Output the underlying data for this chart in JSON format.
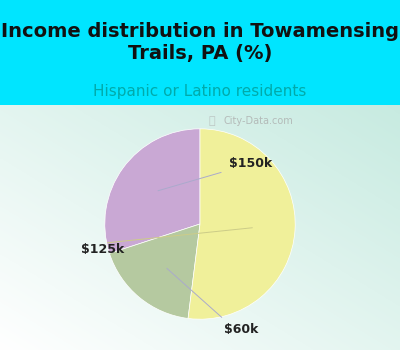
{
  "title": "Income distribution in Towamensing\nTrails, PA (%)",
  "subtitle": "Hispanic or Latino residents",
  "slices": [
    {
      "label": "$150k",
      "value": 30,
      "color": "#c9a8d4"
    },
    {
      "label": "$60k",
      "value": 18,
      "color": "#b5c9a0"
    },
    {
      "label": "$125k",
      "value": 52,
      "color": "#f0f09a"
    }
  ],
  "title_color": "#111111",
  "subtitle_color": "#00aaaa",
  "bg_color": "#00e5ff",
  "label_fontsize": 9,
  "title_fontsize": 14,
  "subtitle_fontsize": 11,
  "startangle": 90,
  "watermark": "City-Data.com"
}
